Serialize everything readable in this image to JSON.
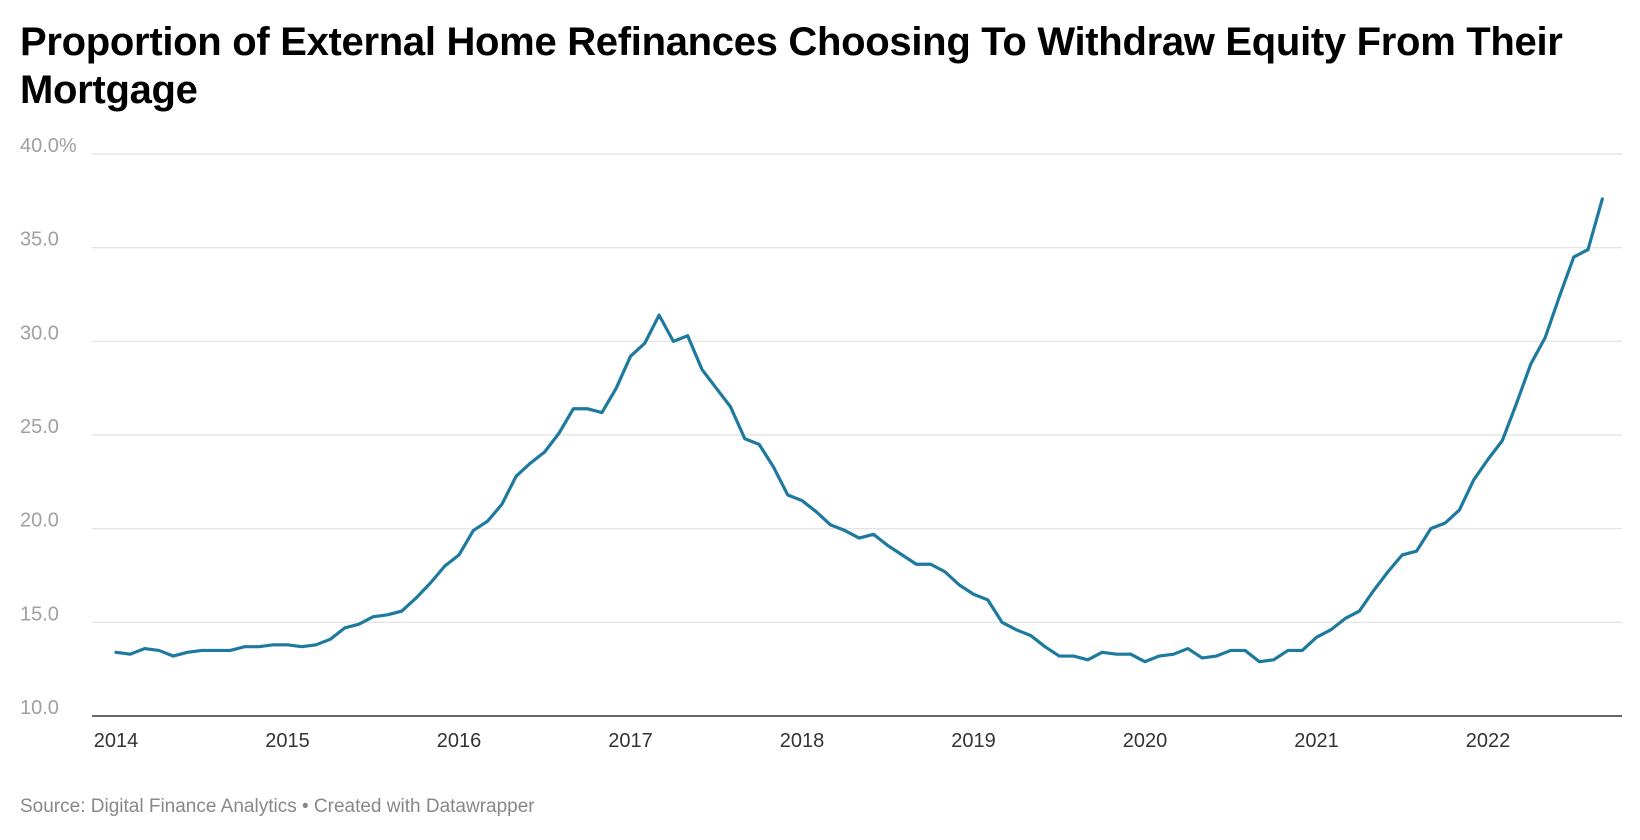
{
  "title": "Proportion of External Home Refinances Choosing To Withdraw Equity From Their Mortgage",
  "footer": {
    "source": "Source: Digital Finance Analytics",
    "separator": "•",
    "credit": "Created with Datawrapper"
  },
  "colors": {
    "line": "#1d7a9e",
    "grid": "#e0e0e0",
    "axis": "#333333"
  },
  "chart_data": {
    "type": "line",
    "title": "Proportion of External Home Refinances Choosing To Withdraw Equity From Their Mortgage",
    "xlabel": "",
    "ylabel": "",
    "ylim": [
      10,
      40
    ],
    "yticks": [
      "40.0%",
      "35.0",
      "30.0",
      "25.0",
      "20.0",
      "15.0",
      "10.0"
    ],
    "ytick_values": [
      40,
      35,
      30,
      25,
      20,
      15,
      10
    ],
    "xticks": [
      "2014",
      "2015",
      "2016",
      "2017",
      "2018",
      "2019",
      "2020",
      "2021",
      "2022"
    ],
    "x_start": "2014-01",
    "x_end": "2022-09",
    "frequency": "monthly",
    "grid": true,
    "legend": "none",
    "series": [
      {
        "values": [
          13.4,
          13.3,
          13.6,
          13.5,
          13.2,
          13.4,
          13.5,
          13.5,
          13.5,
          13.7,
          13.7,
          13.8,
          13.8,
          13.7,
          13.8,
          14.1,
          14.7,
          14.9,
          15.3,
          15.4,
          15.6,
          16.3,
          17.1,
          18.0,
          18.6,
          19.9,
          20.4,
          21.3,
          22.8,
          23.5,
          24.1,
          25.1,
          26.4,
          26.4,
          26.2,
          27.5,
          29.2,
          29.9,
          31.4,
          30.0,
          30.3,
          28.5,
          27.5,
          26.5,
          24.8,
          24.5,
          23.3,
          21.8,
          21.5,
          20.9,
          20.2,
          19.9,
          19.5,
          19.7,
          19.1,
          18.6,
          18.1,
          18.1,
          17.7,
          17.0,
          16.5,
          16.2,
          15.0,
          14.6,
          14.3,
          13.7,
          13.2,
          13.2,
          13.0,
          13.4,
          13.3,
          13.3,
          12.9,
          13.2,
          13.3,
          13.6,
          13.1,
          13.2,
          13.5,
          13.5,
          12.9,
          13.0,
          13.5,
          13.5,
          14.2,
          14.6,
          15.2,
          15.6,
          16.7,
          17.7,
          18.6,
          18.8,
          20.0,
          20.3,
          21.0,
          22.6,
          23.7,
          24.7,
          26.7,
          28.8,
          30.2,
          32.4,
          34.5,
          34.9,
          37.6
        ]
      }
    ]
  }
}
